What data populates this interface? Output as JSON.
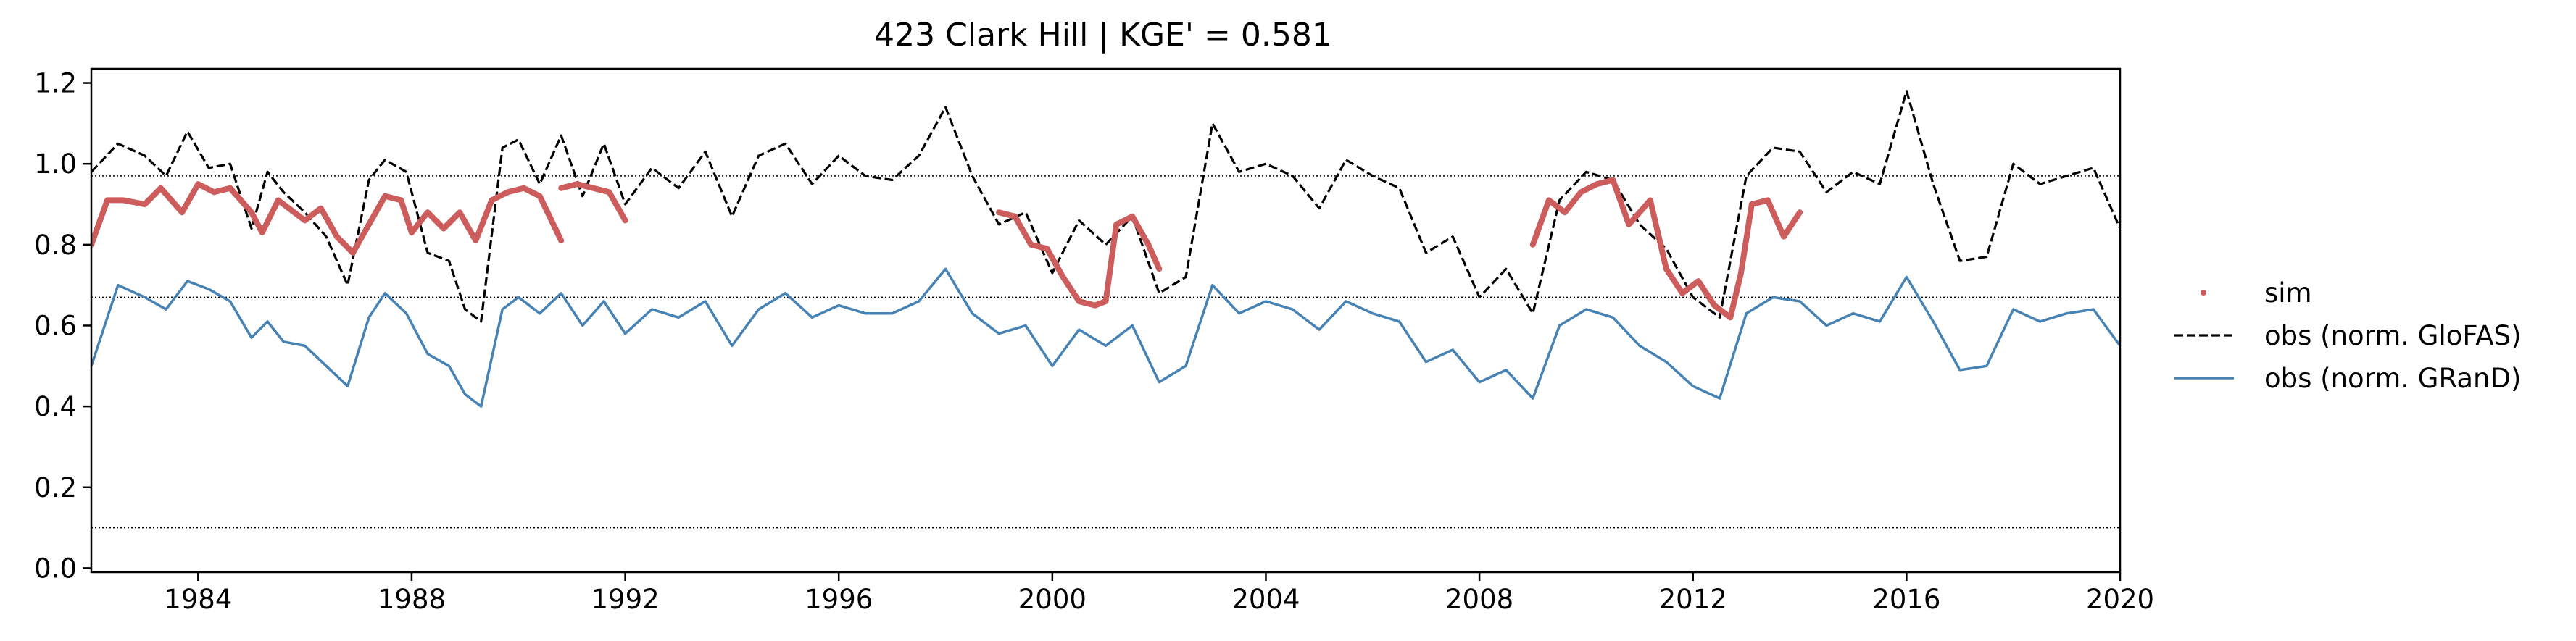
{
  "chart_data": {
    "type": "line",
    "title": "423  Clark Hill | KGE' = 0.581",
    "xlabel": "",
    "ylabel": "",
    "xlim": [
      1982.0,
      2020.0
    ],
    "ylim": [
      -0.01,
      1.235
    ],
    "x_ticks": [
      1984,
      1988,
      1992,
      1996,
      2000,
      2004,
      2008,
      2012,
      2016,
      2020
    ],
    "x_tick_labels": [
      "1984",
      "1988",
      "1992",
      "1996",
      "2000",
      "2004",
      "2008",
      "2012",
      "2016",
      "2020"
    ],
    "y_ticks": [
      0.0,
      0.2,
      0.4,
      0.6,
      0.8,
      1.0,
      1.2
    ],
    "y_tick_labels": [
      "0.0",
      "0.2",
      "0.4",
      "0.6",
      "0.8",
      "1.0",
      "1.2"
    ],
    "reference_lines": [
      0.97,
      0.67,
      0.1
    ],
    "grid": false,
    "legend_position": "right",
    "series": [
      {
        "name": "sim",
        "style": "dots",
        "color": "#cd5c5c",
        "x": [
          1982.0,
          1982.5,
          1983.0,
          1983.5,
          1984.0,
          1984.5,
          1985.0,
          1985.5,
          1986.0,
          1986.5,
          1987.0,
          1987.5,
          1988.0,
          1988.5,
          1989.0,
          1989.5,
          1990.0,
          1990.5,
          1990.8,
          1991.0,
          1991.5,
          1992.0
        ],
        "y": [
          0.81,
          0.91,
          0.92,
          0.94,
          0.95,
          0.93,
          0.84,
          0.89,
          0.86,
          0.79,
          0.88,
          0.93,
          0.84,
          0.88,
          0.81,
          0.91,
          0.93,
          0.92,
          0.82,
          0.94,
          0.94,
          0.86
        ],
        "segments": [
          {
            "x": [
              1982.0,
              1982.3,
              1982.6,
              1983.0,
              1983.3,
              1983.7,
              1984.0,
              1984.3,
              1984.6,
              1985.0,
              1985.2,
              1985.5,
              1985.8,
              1986.0,
              1986.3,
              1986.6,
              1986.9,
              1987.2,
              1987.5,
              1987.8,
              1988.0,
              1988.3,
              1988.6,
              1988.9,
              1989.2,
              1989.5,
              1989.8,
              1990.1,
              1990.4,
              1990.8
            ],
            "y": [
              0.8,
              0.91,
              0.91,
              0.9,
              0.94,
              0.88,
              0.95,
              0.93,
              0.94,
              0.88,
              0.83,
              0.91,
              0.88,
              0.86,
              0.89,
              0.82,
              0.78,
              0.85,
              0.92,
              0.91,
              0.83,
              0.88,
              0.84,
              0.88,
              0.81,
              0.91,
              0.93,
              0.94,
              0.92,
              0.81
            ]
          },
          {
            "x": [
              1990.8,
              1991.1,
              1991.4,
              1991.7,
              1992.0
            ],
            "y": [
              0.94,
              0.95,
              0.94,
              0.93,
              0.86
            ]
          },
          {
            "x": [
              1999.0,
              1999.3,
              1999.6,
              1999.9,
              2000.2,
              2000.5,
              2000.8,
              2001.0,
              2001.2,
              2001.5,
              2001.8,
              2002.0
            ],
            "y": [
              0.88,
              0.87,
              0.8,
              0.79,
              0.72,
              0.66,
              0.65,
              0.66,
              0.85,
              0.87,
              0.8,
              0.74
            ]
          },
          {
            "x": [
              2009.0,
              2009.3,
              2009.6,
              2009.9,
              2010.2,
              2010.5,
              2010.8,
              2011.0,
              2011.2,
              2011.5,
              2011.8,
              2012.1,
              2012.4,
              2012.7,
              2012.9,
              2013.1,
              2013.4,
              2013.7,
              2014.0
            ],
            "y": [
              0.8,
              0.91,
              0.88,
              0.93,
              0.95,
              0.96,
              0.85,
              0.88,
              0.91,
              0.74,
              0.68,
              0.71,
              0.65,
              0.62,
              0.73,
              0.9,
              0.91,
              0.82,
              0.88
            ]
          }
        ]
      },
      {
        "name": "obs (norm. GloFAS)",
        "style": "dashed",
        "color": "#000000",
        "x": [
          1982.0,
          1982.5,
          1983.0,
          1983.4,
          1983.8,
          1984.2,
          1984.6,
          1985.0,
          1985.3,
          1985.6,
          1986.0,
          1986.4,
          1986.8,
          1987.2,
          1987.5,
          1987.9,
          1988.3,
          1988.7,
          1989.0,
          1989.3,
          1989.7,
          1990.0,
          1990.4,
          1990.8,
          1991.2,
          1991.6,
          1992.0,
          1992.5,
          1993.0,
          1993.5,
          1994.0,
          1994.5,
          1995.0,
          1995.5,
          1996.0,
          1996.5,
          1997.0,
          1997.5,
          1998.0,
          1998.5,
          1999.0,
          1999.5,
          2000.0,
          2000.5,
          2001.0,
          2001.5,
          2002.0,
          2002.5,
          2003.0,
          2003.5,
          2004.0,
          2004.5,
          2005.0,
          2005.5,
          2006.0,
          2006.5,
          2007.0,
          2007.5,
          2008.0,
          2008.5,
          2009.0,
          2009.5,
          2010.0,
          2010.5,
          2011.0,
          2011.5,
          2012.0,
          2012.5,
          2013.0,
          2013.5,
          2014.0,
          2014.5,
          2015.0,
          2015.5,
          2016.0,
          2016.5,
          2017.0,
          2017.5,
          2018.0,
          2018.5,
          2019.0,
          2019.5,
          2020.0
        ],
        "y": [
          0.98,
          1.05,
          1.02,
          0.97,
          1.08,
          0.99,
          1.0,
          0.84,
          0.98,
          0.93,
          0.88,
          0.82,
          0.7,
          0.96,
          1.01,
          0.98,
          0.78,
          0.76,
          0.64,
          0.61,
          1.04,
          1.06,
          0.95,
          1.07,
          0.92,
          1.05,
          0.9,
          0.99,
          0.94,
          1.03,
          0.87,
          1.02,
          1.05,
          0.95,
          1.02,
          0.97,
          0.96,
          1.02,
          1.14,
          0.97,
          0.85,
          0.88,
          0.73,
          0.86,
          0.8,
          0.87,
          0.68,
          0.72,
          1.1,
          0.98,
          1.0,
          0.97,
          0.89,
          1.01,
          0.97,
          0.94,
          0.78,
          0.82,
          0.67,
          0.74,
          0.63,
          0.91,
          0.98,
          0.96,
          0.85,
          0.79,
          0.67,
          0.62,
          0.97,
          1.04,
          1.03,
          0.93,
          0.98,
          0.95,
          1.18,
          0.95,
          0.76,
          0.77,
          1.0,
          0.95,
          0.97,
          0.99,
          0.84
        ]
      },
      {
        "name": "obs (norm. GRanD)",
        "style": "solid",
        "color": "#4682b4",
        "x": [
          1982.0,
          1982.5,
          1983.0,
          1983.4,
          1983.8,
          1984.2,
          1984.6,
          1985.0,
          1985.3,
          1985.6,
          1986.0,
          1986.4,
          1986.8,
          1987.2,
          1987.5,
          1987.9,
          1988.3,
          1988.7,
          1989.0,
          1989.3,
          1989.7,
          1990.0,
          1990.4,
          1990.8,
          1991.2,
          1991.6,
          1992.0,
          1992.5,
          1993.0,
          1993.5,
          1994.0,
          1994.5,
          1995.0,
          1995.5,
          1996.0,
          1996.5,
          1997.0,
          1997.5,
          1998.0,
          1998.5,
          1999.0,
          1999.5,
          2000.0,
          2000.5,
          2001.0,
          2001.5,
          2002.0,
          2002.5,
          2003.0,
          2003.5,
          2004.0,
          2004.5,
          2005.0,
          2005.5,
          2006.0,
          2006.5,
          2007.0,
          2007.5,
          2008.0,
          2008.5,
          2009.0,
          2009.5,
          2010.0,
          2010.5,
          2011.0,
          2011.5,
          2012.0,
          2012.5,
          2013.0,
          2013.5,
          2014.0,
          2014.5,
          2015.0,
          2015.5,
          2016.0,
          2016.5,
          2017.0,
          2017.5,
          2018.0,
          2018.5,
          2019.0,
          2019.5,
          2020.0
        ],
        "y": [
          0.5,
          0.7,
          0.67,
          0.64,
          0.71,
          0.69,
          0.66,
          0.57,
          0.61,
          0.56,
          0.55,
          0.5,
          0.45,
          0.62,
          0.68,
          0.63,
          0.53,
          0.5,
          0.43,
          0.4,
          0.64,
          0.67,
          0.63,
          0.68,
          0.6,
          0.66,
          0.58,
          0.64,
          0.62,
          0.66,
          0.55,
          0.64,
          0.68,
          0.62,
          0.65,
          0.63,
          0.63,
          0.66,
          0.74,
          0.63,
          0.58,
          0.6,
          0.5,
          0.59,
          0.55,
          0.6,
          0.46,
          0.5,
          0.7,
          0.63,
          0.66,
          0.64,
          0.59,
          0.66,
          0.63,
          0.61,
          0.51,
          0.54,
          0.46,
          0.49,
          0.42,
          0.6,
          0.64,
          0.62,
          0.55,
          0.51,
          0.45,
          0.42,
          0.63,
          0.67,
          0.66,
          0.6,
          0.63,
          0.61,
          0.72,
          0.61,
          0.49,
          0.5,
          0.64,
          0.61,
          0.63,
          0.64,
          0.55
        ]
      }
    ],
    "legend": [
      "sim",
      "obs (norm. GloFAS)",
      "obs (norm. GRanD)"
    ]
  }
}
